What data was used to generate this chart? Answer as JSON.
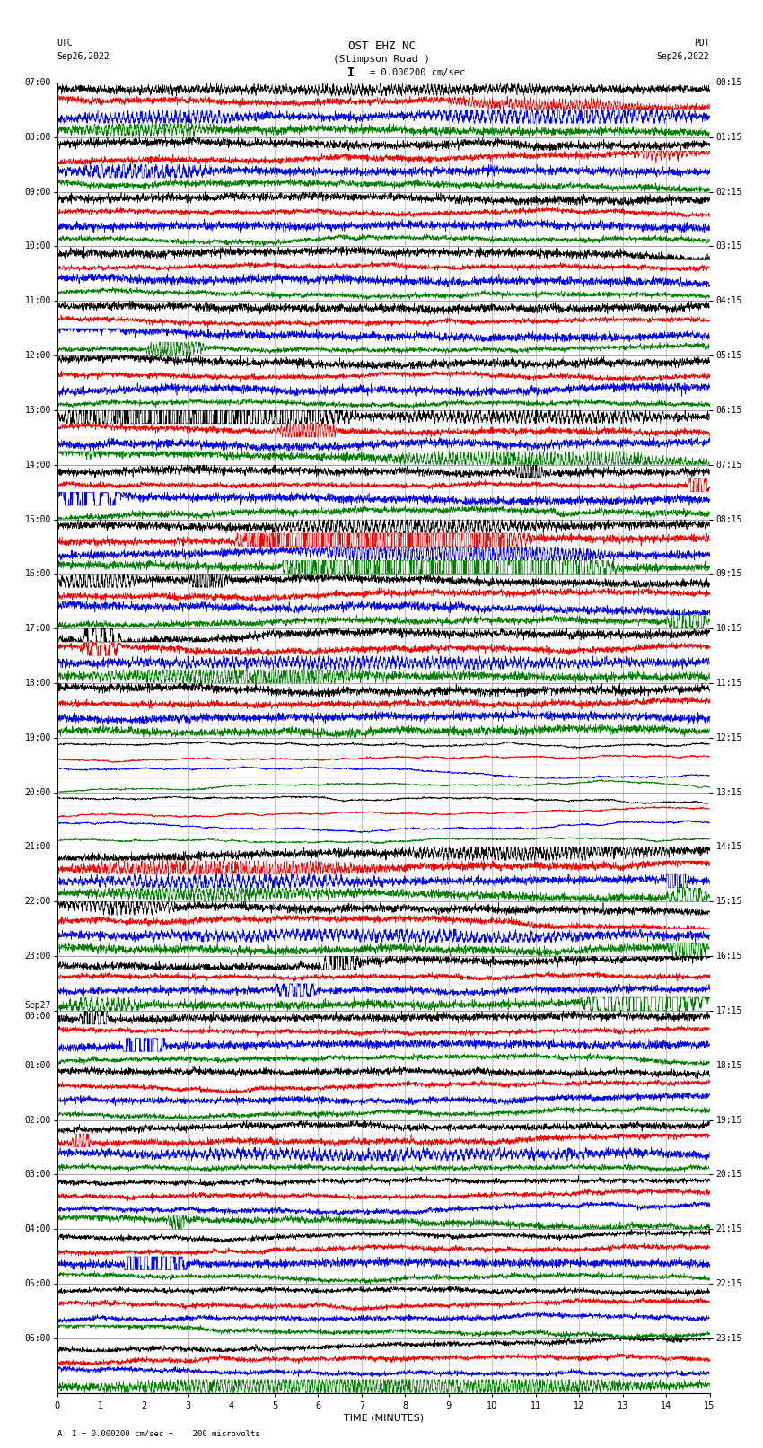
{
  "title_line1": "OST EHZ NC",
  "title_line2": "(Stimpson Road )",
  "scale_text": "I = 0.000200 cm/sec",
  "footer_text": "A  I = 0.000200 cm/sec =    200 microvolts",
  "utc_label": "UTC",
  "utc_date": "Sep26,2022",
  "pdt_label": "PDT",
  "pdt_date": "Sep26,2022",
  "xlabel": "TIME (MINUTES)",
  "n_hours": 24,
  "traces_per_hour": 4,
  "x_min": 0,
  "x_max": 15,
  "bg_color": "#ffffff",
  "grid_color": "#aaaaaa",
  "trace_colors": [
    "black",
    "red",
    "blue",
    "green"
  ],
  "left_hour_labels": [
    "07:00",
    "08:00",
    "09:00",
    "10:00",
    "11:00",
    "12:00",
    "13:00",
    "14:00",
    "15:00",
    "16:00",
    "17:00",
    "18:00",
    "19:00",
    "20:00",
    "21:00",
    "22:00",
    "23:00",
    "Sep27\n00:00",
    "01:00",
    "02:00",
    "03:00",
    "04:00",
    "05:00",
    "06:00"
  ],
  "right_hour_labels": [
    "00:15",
    "01:15",
    "02:15",
    "03:15",
    "04:15",
    "05:15",
    "06:15",
    "07:15",
    "08:15",
    "09:15",
    "10:15",
    "11:15",
    "12:15",
    "13:15",
    "14:15",
    "15:15",
    "16:15",
    "17:15",
    "18:15",
    "19:15",
    "20:15",
    "21:15",
    "22:15",
    "23:15"
  ],
  "title_fontsize": 9,
  "label_fontsize": 7,
  "axis_fontsize": 7
}
